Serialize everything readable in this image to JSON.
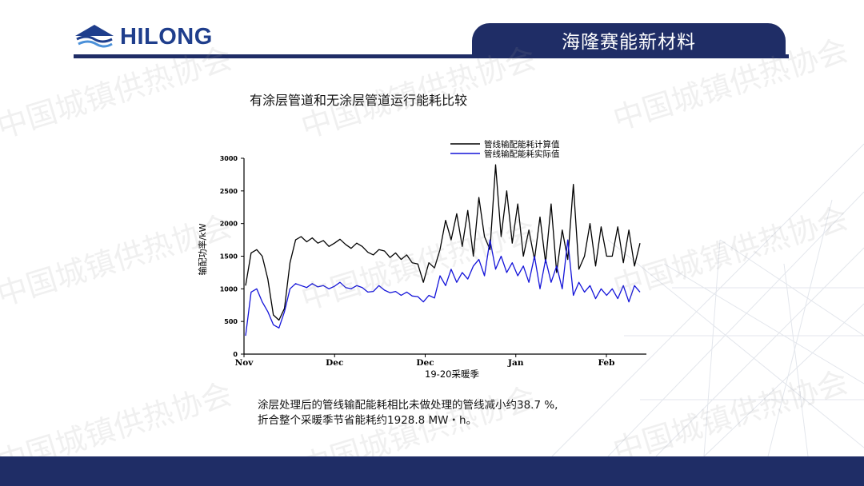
{
  "brand": {
    "logo_text": "HILONG",
    "company": "海隆赛能新材料"
  },
  "slide": {
    "title": "有涂层管道和无涂层管道运行能耗比较",
    "summary_line1": "涂层处理后的管线输配能耗相比未做处理的管线减小约38.7 %,",
    "summary_line2": "折合整个采暖季节省能耗约1928.8 MW・h。"
  },
  "watermark": {
    "text": "中国城镇供热协会"
  },
  "colors": {
    "navy": "#1f2d66",
    "series_calc": "#000000",
    "series_actual": "#1414d9"
  },
  "chart_data": {
    "type": "line",
    "xlabel": "19-20采暖季",
    "ylabel": "输配功率/kW",
    "ylim": [
      0,
      3000
    ],
    "yticks": [
      0,
      500,
      1000,
      1500,
      2000,
      2500,
      3000
    ],
    "xticks": [
      "Nov",
      "Dec",
      "Dec",
      "Jan",
      "Feb"
    ],
    "legend_position": "top-right",
    "series": [
      {
        "name": "管线输配能耗计算值",
        "color": "#000000",
        "values": [
          1050,
          1550,
          1600,
          1500,
          1150,
          600,
          520,
          700,
          1400,
          1750,
          1800,
          1720,
          1780,
          1700,
          1740,
          1650,
          1700,
          1760,
          1680,
          1620,
          1700,
          1650,
          1560,
          1520,
          1600,
          1580,
          1480,
          1550,
          1450,
          1520,
          1400,
          1380,
          1100,
          1400,
          1320,
          1600,
          2050,
          1750,
          2150,
          1650,
          2200,
          1500,
          2400,
          1800,
          1600,
          2900,
          1800,
          2500,
          1700,
          2300,
          1500,
          1900,
          1450,
          2100,
          1400,
          2300,
          1250,
          1900,
          1450,
          2600,
          1300,
          1500,
          2000,
          1350,
          1950,
          1500,
          1500,
          1950,
          1400,
          1900,
          1350,
          1700
        ]
      },
      {
        "name": "管线输配能耗实际值",
        "color": "#1414d9",
        "values": [
          280,
          950,
          1000,
          800,
          650,
          450,
          400,
          650,
          1000,
          1080,
          1050,
          1020,
          1080,
          1030,
          1050,
          1000,
          1040,
          1100,
          1020,
          1000,
          1050,
          1020,
          950,
          960,
          1050,
          980,
          940,
          960,
          900,
          950,
          890,
          880,
          800,
          900,
          860,
          1200,
          1050,
          1300,
          1100,
          1250,
          1150,
          1350,
          1450,
          1200,
          1750,
          1300,
          1500,
          1250,
          1400,
          1200,
          1350,
          1100,
          1500,
          1000,
          1450,
          1100,
          1350,
          1000,
          1750,
          900,
          1100,
          950,
          1050,
          850,
          1000,
          900,
          1000,
          850,
          1050,
          800,
          1050,
          950
        ]
      }
    ]
  }
}
